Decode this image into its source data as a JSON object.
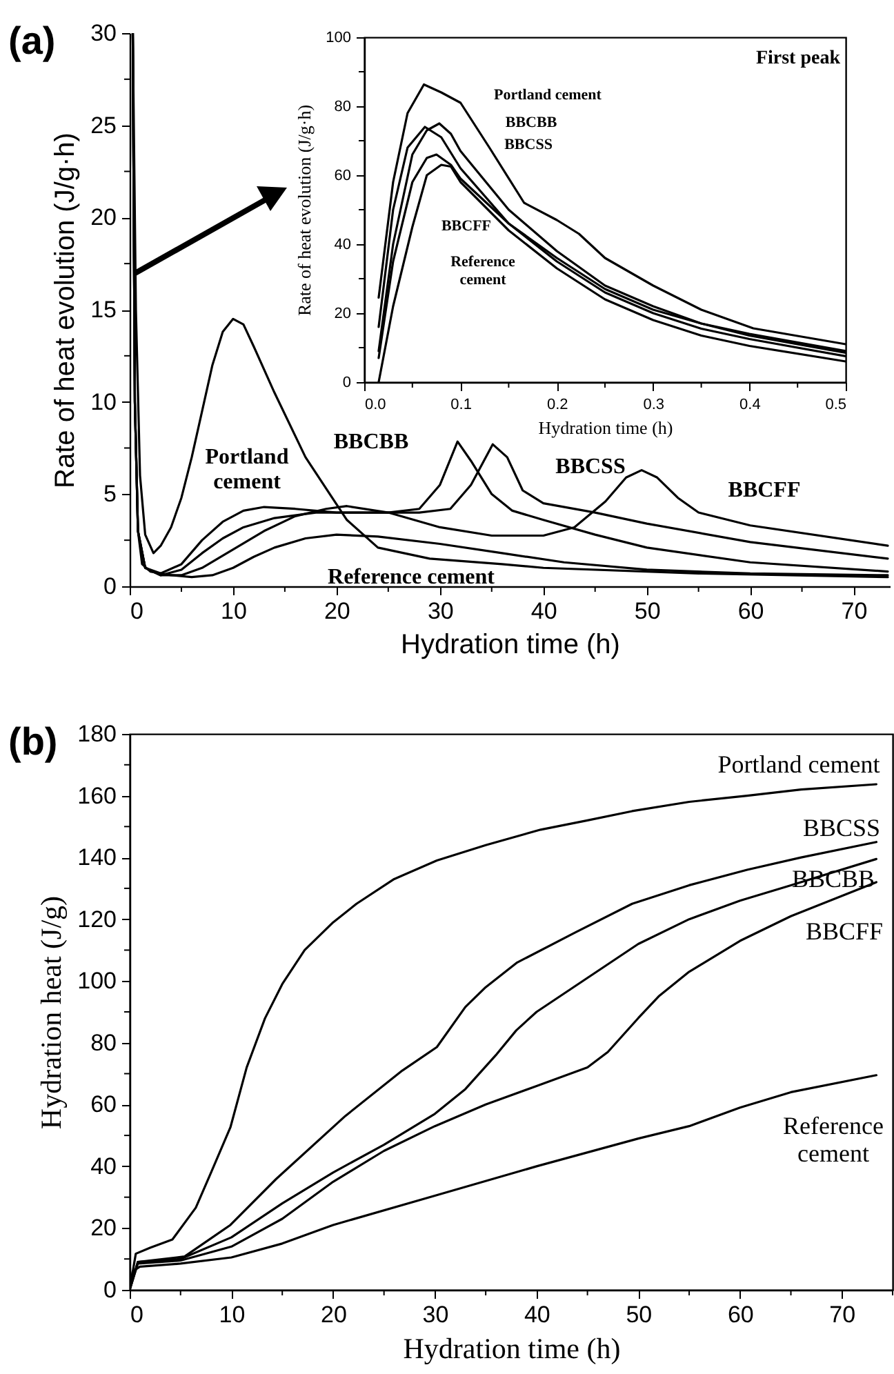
{
  "chart_data": [
    {
      "type": "line",
      "title": "(a)",
      "xlabel": "Hydration time (h)",
      "ylabel": "Rate of heat evolution (J/g·h)",
      "xlim": [
        0,
        73.5
      ],
      "ylim": [
        0,
        30
      ],
      "xticks": [
        0,
        {
          "value": 5,
          "label": null
        },
        10,
        {
          "value": 15,
          "label": null
        },
        20,
        {
          "value": 25,
          "label": null
        },
        30,
        {
          "value": 35,
          "label": null
        },
        40,
        {
          "value": 45,
          "label": null
        },
        50,
        {
          "value": 55,
          "label": null
        },
        60,
        {
          "value": 65,
          "label": null
        },
        70
      ],
      "yticks": [
        0,
        {
          "value": 2.5,
          "label": null
        },
        5,
        {
          "value": 7.5,
          "label": null
        },
        10,
        {
          "value": 12.5,
          "label": null
        },
        15,
        {
          "value": 17.5,
          "label": null
        },
        20,
        {
          "value": 22.5,
          "label": null
        },
        25,
        {
          "value": 27.5,
          "label": null
        },
        30
      ],
      "series": [
        {
          "color": "#000000",
          "x": [
            0.3,
            0.6,
            1,
            1.5,
            2.3,
            3,
            4,
            5,
            6,
            7,
            8,
            9,
            10,
            11,
            12,
            14,
            17,
            21,
            24,
            29,
            36,
            40,
            55,
            73.3
          ],
          "values": [
            30,
            15,
            6,
            2.8,
            1.8,
            2.2,
            3.2,
            4.8,
            7,
            9.5,
            12,
            13.8,
            14.5,
            14.2,
            13,
            10.5,
            7,
            3.6,
            2.1,
            1.5,
            1.2,
            1.0,
            0.7,
            0.5
          ]
        },
        {
          "color": "#000000",
          "x": [
            0.3,
            0.5,
            0.8,
            1.5,
            3,
            5,
            7,
            9,
            11,
            13,
            16,
            20,
            25,
            28,
            30,
            31.7,
            33,
            35,
            37,
            40,
            45,
            50,
            60,
            73.3
          ],
          "values": [
            30,
            10,
            3,
            1,
            0.7,
            1.2,
            2.5,
            3.5,
            4.1,
            4.3,
            4.2,
            4.0,
            4.0,
            4.2,
            5.5,
            7.85,
            6.8,
            5,
            4.1,
            3.6,
            2.8,
            2.1,
            1.3,
            0.8
          ]
        },
        {
          "color": "#000000",
          "x": [
            0.3,
            0.5,
            0.8,
            1.5,
            3,
            5,
            7,
            9,
            11,
            14,
            18,
            22,
            28,
            31,
            33,
            35.1,
            36.5,
            38,
            40,
            45,
            50,
            60,
            73.3
          ],
          "values": [
            30,
            10,
            3,
            1,
            0.6,
            0.9,
            1.8,
            2.6,
            3.2,
            3.7,
            4.0,
            4.0,
            4.0,
            4.2,
            5.5,
            7.7,
            7,
            5.2,
            4.5,
            4.0,
            3.4,
            2.4,
            1.5
          ]
        },
        {
          "color": "#000000",
          "x": [
            0.3,
            0.5,
            0.8,
            1.5,
            3,
            5,
            7,
            10,
            13,
            16,
            19,
            21,
            25,
            30,
            35,
            40,
            43,
            46,
            48,
            49.5,
            51,
            53,
            55,
            60,
            73.3
          ],
          "values": [
            30,
            10,
            3,
            1,
            0.6,
            0.6,
            1.0,
            2.0,
            3.0,
            3.8,
            4.2,
            4.35,
            4.0,
            3.2,
            2.75,
            2.75,
            3.2,
            4.6,
            5.9,
            6.3,
            5.9,
            4.8,
            4,
            3.3,
            2.2
          ]
        },
        {
          "color": "#000000",
          "x": [
            0.3,
            0.5,
            0.8,
            1.2,
            2,
            4,
            6,
            8,
            10,
            12,
            14,
            17,
            20,
            24,
            30,
            36,
            42,
            50,
            60,
            73.3
          ],
          "values": [
            30,
            10,
            3,
            1.2,
            0.8,
            0.6,
            0.5,
            0.6,
            1.0,
            1.6,
            2.1,
            2.6,
            2.8,
            2.7,
            2.3,
            1.8,
            1.3,
            0.9,
            0.7,
            0.6
          ]
        }
      ],
      "annotations": [
        "Portland\ncement",
        "BBCBB",
        "BBCSS",
        "BBCFF",
        "Reference cement"
      ]
    },
    {
      "type": "line",
      "xlabel": "Hydration time (h)",
      "ylabel": "Rate of heat evolution (J/g·h)",
      "xlim": [
        0,
        0.5
      ],
      "ylim": [
        0,
        100
      ],
      "xticks": [
        {
          "value": 0,
          "label": "0.0"
        },
        {
          "value": 0.05,
          "label": null
        },
        0.1,
        {
          "value": 0.15,
          "label": null
        },
        0.2,
        {
          "value": 0.25,
          "label": null
        },
        0.3,
        {
          "value": 0.35,
          "label": null
        },
        0.4,
        {
          "value": 0.45,
          "label": null
        },
        0.5
      ],
      "yticks": [
        0,
        {
          "value": 10,
          "label": null
        },
        20,
        {
          "value": 30,
          "label": null
        },
        40,
        {
          "value": 50,
          "label": null
        },
        60,
        {
          "value": 70,
          "label": null
        },
        80,
        {
          "value": 90,
          "label": null
        },
        100
      ],
      "series": [
        {
          "color": "#000000",
          "x": [
            0.015,
            0.03,
            0.045,
            0.062,
            0.08,
            0.1,
            0.13,
            0.166,
            0.2,
            0.223,
            0.25,
            0.3,
            0.35,
            0.404,
            0.5
          ],
          "values": [
            24.5,
            58,
            78,
            86.3,
            84,
            81,
            68,
            52,
            47,
            43,
            36,
            28,
            21,
            15.6,
            11
          ]
        },
        {
          "color": "#000000",
          "x": [
            0.015,
            0.03,
            0.045,
            0.063,
            0.08,
            0.1,
            0.15,
            0.2,
            0.25,
            0.3,
            0.35,
            0.4,
            0.5
          ],
          "values": [
            16,
            50,
            68,
            74,
            71,
            62,
            46,
            36,
            27,
            21,
            17,
            13.5,
            8.5
          ]
        },
        {
          "color": "#000000",
          "x": [
            0.015,
            0.03,
            0.05,
            0.065,
            0.078,
            0.09,
            0.1,
            0.15,
            0.2,
            0.25,
            0.3,
            0.35,
            0.4,
            0.5
          ],
          "values": [
            9,
            40,
            66,
            73,
            75,
            72,
            67,
            50,
            38,
            28,
            22,
            17,
            14,
            9
          ]
        },
        {
          "color": "#000000",
          "x": [
            0.015,
            0.03,
            0.05,
            0.065,
            0.075,
            0.09,
            0.1,
            0.15,
            0.2,
            0.25,
            0.3,
            0.35,
            0.4,
            0.5
          ],
          "values": [
            7,
            35,
            58,
            65,
            66,
            63,
            59,
            46,
            35,
            26,
            20,
            15.5,
            12.5,
            7.5
          ]
        },
        {
          "color": "#000000",
          "x": [
            0.015,
            0.03,
            0.05,
            0.065,
            0.08,
            0.09,
            0.1,
            0.15,
            0.2,
            0.25,
            0.3,
            0.35,
            0.4,
            0.5
          ],
          "values": [
            0,
            22,
            45,
            60,
            63,
            62.5,
            58,
            44,
            33,
            24,
            18,
            13.5,
            10.5,
            6
          ]
        }
      ],
      "annotations": [
        "First peak",
        "Portland cement",
        "BBCBB",
        "BBCSS",
        "BBCFF",
        "Reference\ncement"
      ]
    },
    {
      "type": "line",
      "title": "(b)",
      "xlabel": "Hydration time (h)",
      "ylabel": "Hydration heat (J/g)",
      "xlim": [
        0,
        75
      ],
      "ylim": [
        0,
        180
      ],
      "xticks": [
        0,
        {
          "value": 5,
          "label": null
        },
        10,
        {
          "value": 15,
          "label": null
        },
        20,
        {
          "value": 25,
          "label": null
        },
        30,
        {
          "value": 35,
          "label": null
        },
        40,
        {
          "value": 45,
          "label": null
        },
        50,
        {
          "value": 55,
          "label": null
        },
        60,
        {
          "value": 65,
          "label": null
        },
        70,
        {
          "value": 75,
          "label": null
        }
      ],
      "yticks": [
        0,
        {
          "value": 10,
          "label": null
        },
        20,
        {
          "value": 30,
          "label": null
        },
        40,
        {
          "value": 50,
          "label": null
        },
        60,
        {
          "value": 70,
          "label": null
        },
        80,
        {
          "value": 90,
          "label": null
        },
        100,
        {
          "value": 110,
          "label": null
        },
        120,
        {
          "value": 130,
          "label": null
        },
        140,
        {
          "value": 150,
          "label": null
        },
        160,
        {
          "value": 170,
          "label": null
        },
        180
      ],
      "series": [
        {
          "color": "#000000",
          "x": [
            0,
            0.6,
            2,
            4.2,
            6.5,
            8,
            9.9,
            11.5,
            13.3,
            15,
            17.2,
            20,
            22.3,
            26,
            30.2,
            35,
            40.4,
            45,
            49.4,
            55,
            60.7,
            66,
            73.4
          ],
          "values": [
            0,
            11.7,
            13.6,
            16.3,
            26.6,
            38,
            52.6,
            72,
            87.9,
            99,
            110,
            119,
            125,
            133,
            139,
            144,
            149,
            152,
            155,
            158,
            160,
            162,
            163.7
          ]
        },
        {
          "color": "#000000",
          "x": [
            0,
            0.8,
            5.4,
            9.9,
            14.4,
            21.2,
            26.8,
            30.2,
            33,
            35,
            38.1,
            43.8,
            49.4,
            55,
            60.7,
            66,
            73.4
          ],
          "values": [
            0,
            9,
            10.8,
            21,
            35.9,
            56.3,
            71,
            78.6,
            91.6,
            98,
            106,
            115.7,
            125,
            131,
            136,
            140,
            145
          ]
        },
        {
          "color": "#000000",
          "x": [
            0,
            0.8,
            5,
            10,
            15,
            20,
            25,
            30,
            33,
            36,
            38,
            40,
            45,
            50,
            55,
            60,
            65,
            73.4
          ],
          "values": [
            0,
            9,
            10,
            17,
            28,
            38,
            47,
            57,
            65,
            76,
            84,
            90,
            101,
            112,
            120,
            126,
            131,
            139.5
          ]
        },
        {
          "color": "#000000",
          "x": [
            0,
            0.8,
            5,
            10,
            15,
            20,
            25,
            30,
            35,
            40,
            45,
            47,
            50,
            52,
            55,
            60,
            65,
            73.4
          ],
          "values": [
            0,
            8.5,
            9.5,
            14,
            23,
            35,
            45,
            53,
            60,
            66,
            72,
            77,
            88,
            95,
            103,
            113,
            121,
            132
          ]
        },
        {
          "color": "#000000",
          "x": [
            0,
            0.3,
            1,
            5,
            10,
            15,
            20,
            30,
            40,
            50,
            55,
            60,
            65,
            73.4
          ],
          "values": [
            0,
            6,
            7.5,
            8.5,
            10.5,
            15,
            21,
            30.5,
            40,
            49,
            53,
            59,
            64,
            69.5
          ]
        }
      ],
      "annotations": [
        "Portland cement",
        "BBCSS",
        "BBCBB",
        "BBCFF",
        "Reference\ncement"
      ]
    }
  ]
}
